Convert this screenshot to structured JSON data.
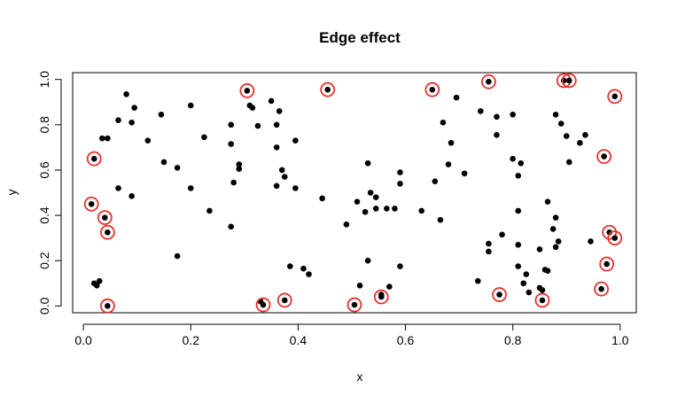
{
  "chart_data": {
    "type": "scatter",
    "title": "Edge effect",
    "xlabel": "x",
    "ylabel": "y",
    "xlim": [
      -0.02,
      1.03
    ],
    "ylim": [
      -0.03,
      1.03
    ],
    "x_ticks": [
      {
        "value": 0.0,
        "label": "0.0"
      },
      {
        "value": 0.2,
        "label": "0.2"
      },
      {
        "value": 0.4,
        "label": "0.4"
      },
      {
        "value": 0.6,
        "label": "0.6"
      },
      {
        "value": 0.8,
        "label": "0.8"
      },
      {
        "value": 1.0,
        "label": "1.0"
      }
    ],
    "y_ticks": [
      {
        "value": 0.0,
        "label": "0.0"
      },
      {
        "value": 0.2,
        "label": "0.2"
      },
      {
        "value": 0.4,
        "label": "0.4"
      },
      {
        "value": 0.6,
        "label": "0.6"
      },
      {
        "value": 0.8,
        "label": "0.8"
      },
      {
        "value": 1.0,
        "label": "1.0"
      }
    ],
    "grid": false,
    "colors": {
      "point": "#000000",
      "highlight": "#e8302a"
    },
    "points": [
      [
        0.08,
        0.935
      ],
      [
        0.095,
        0.875
      ],
      [
        0.065,
        0.82
      ],
      [
        0.09,
        0.81
      ],
      [
        0.035,
        0.74
      ],
      [
        0.045,
        0.74
      ],
      [
        0.12,
        0.73
      ],
      [
        0.145,
        0.845
      ],
      [
        0.2,
        0.885
      ],
      [
        0.225,
        0.745
      ],
      [
        0.15,
        0.635
      ],
      [
        0.175,
        0.61
      ],
      [
        0.065,
        0.52
      ],
      [
        0.09,
        0.485
      ],
      [
        0.2,
        0.52
      ],
      [
        0.235,
        0.42
      ],
      [
        0.175,
        0.22
      ],
      [
        0.03,
        0.11
      ],
      [
        0.025,
        0.09
      ],
      [
        0.02,
        0.1
      ],
      [
        0.275,
        0.8
      ],
      [
        0.275,
        0.715
      ],
      [
        0.29,
        0.625
      ],
      [
        0.29,
        0.605
      ],
      [
        0.28,
        0.545
      ],
      [
        0.275,
        0.35
      ],
      [
        0.31,
        0.885
      ],
      [
        0.315,
        0.875
      ],
      [
        0.325,
        0.795
      ],
      [
        0.35,
        0.905
      ],
      [
        0.365,
        0.86
      ],
      [
        0.36,
        0.8
      ],
      [
        0.36,
        0.7
      ],
      [
        0.37,
        0.6
      ],
      [
        0.36,
        0.53
      ],
      [
        0.375,
        0.57
      ],
      [
        0.395,
        0.73
      ],
      [
        0.395,
        0.52
      ],
      [
        0.385,
        0.175
      ],
      [
        0.41,
        0.165
      ],
      [
        0.42,
        0.14
      ],
      [
        0.33,
        0.02
      ],
      [
        0.445,
        0.475
      ],
      [
        0.49,
        0.36
      ],
      [
        0.51,
        0.46
      ],
      [
        0.525,
        0.415
      ],
      [
        0.535,
        0.5
      ],
      [
        0.545,
        0.48
      ],
      [
        0.53,
        0.63
      ],
      [
        0.545,
        0.43
      ],
      [
        0.565,
        0.43
      ],
      [
        0.58,
        0.43
      ],
      [
        0.59,
        0.59
      ],
      [
        0.59,
        0.54
      ],
      [
        0.59,
        0.175
      ],
      [
        0.53,
        0.2
      ],
      [
        0.515,
        0.09
      ],
      [
        0.57,
        0.085
      ],
      [
        0.555,
        0.05
      ],
      [
        0.63,
        0.42
      ],
      [
        0.655,
        0.55
      ],
      [
        0.67,
        0.81
      ],
      [
        0.68,
        0.625
      ],
      [
        0.685,
        0.72
      ],
      [
        0.695,
        0.92
      ],
      [
        0.665,
        0.38
      ],
      [
        0.71,
        0.585
      ],
      [
        0.74,
        0.86
      ],
      [
        0.77,
        0.835
      ],
      [
        0.77,
        0.755
      ],
      [
        0.8,
        0.845
      ],
      [
        0.8,
        0.65
      ],
      [
        0.815,
        0.63
      ],
      [
        0.81,
        0.575
      ],
      [
        0.81,
        0.42
      ],
      [
        0.755,
        0.24
      ],
      [
        0.755,
        0.275
      ],
      [
        0.78,
        0.315
      ],
      [
        0.81,
        0.27
      ],
      [
        0.81,
        0.175
      ],
      [
        0.825,
        0.14
      ],
      [
        0.83,
        0.06
      ],
      [
        0.85,
        0.08
      ],
      [
        0.735,
        0.11
      ],
      [
        0.82,
        0.1
      ],
      [
        0.86,
        0.16
      ],
      [
        0.865,
        0.46
      ],
      [
        0.88,
        0.39
      ],
      [
        0.875,
        0.34
      ],
      [
        0.88,
        0.26
      ],
      [
        0.885,
        0.285
      ],
      [
        0.85,
        0.25
      ],
      [
        0.865,
        0.155
      ],
      [
        0.855,
        0.07
      ],
      [
        0.88,
        0.845
      ],
      [
        0.89,
        0.805
      ],
      [
        0.9,
        0.75
      ],
      [
        0.925,
        0.72
      ],
      [
        0.935,
        0.755
      ],
      [
        0.905,
        0.635
      ],
      [
        0.945,
        0.285
      ]
    ],
    "highlighted_points": [
      [
        0.02,
        0.65
      ],
      [
        0.015,
        0.45
      ],
      [
        0.04,
        0.39
      ],
      [
        0.045,
        0.325
      ],
      [
        0.045,
        0.0
      ],
      [
        0.305,
        0.95
      ],
      [
        0.455,
        0.955
      ],
      [
        0.335,
        0.005
      ],
      [
        0.375,
        0.025
      ],
      [
        0.505,
        0.005
      ],
      [
        0.555,
        0.04
      ],
      [
        0.65,
        0.955
      ],
      [
        0.755,
        0.99
      ],
      [
        0.775,
        0.05
      ],
      [
        0.855,
        0.025
      ],
      [
        0.895,
        0.995
      ],
      [
        0.905,
        0.995
      ],
      [
        0.99,
        0.925
      ],
      [
        0.97,
        0.66
      ],
      [
        0.98,
        0.325
      ],
      [
        0.99,
        0.3
      ],
      [
        0.975,
        0.185
      ],
      [
        0.965,
        0.075
      ]
    ]
  }
}
